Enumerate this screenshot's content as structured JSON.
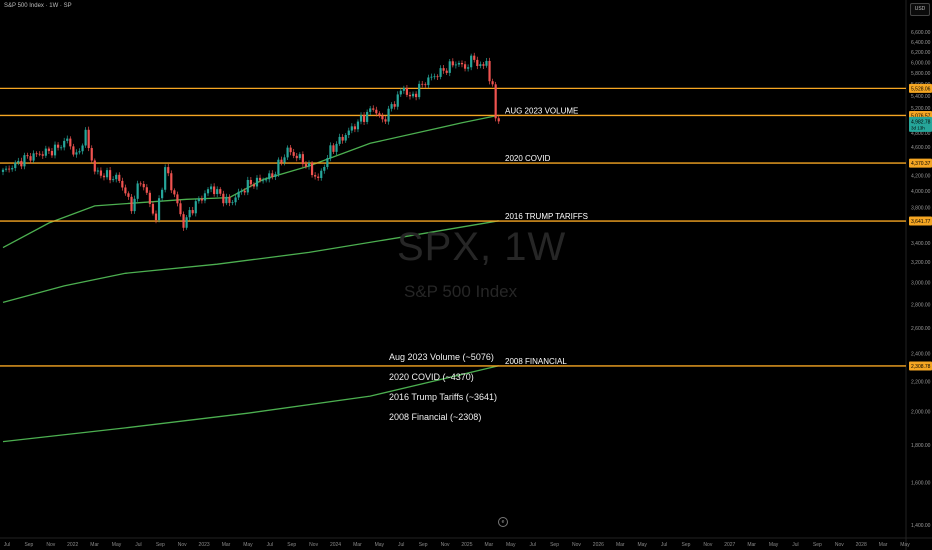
{
  "header": {
    "title": "S&P 500 Index · 1W · SP"
  },
  "toolbar": {
    "currency": "USD"
  },
  "watermark": {
    "symbol": "SPX, 1W",
    "name": "S&P 500 Index"
  },
  "legend_list": [
    "Aug 2023 Volume (~5076)",
    "2020 COVID (~4370)",
    "2016 Trump Tariffs (~3641)",
    "2008 Financial (~2308)"
  ],
  "bottom_icon": "circled-e-icon",
  "chart_data": {
    "type": "candlestick",
    "symbol": "SPX",
    "interval": "1W",
    "price_axis": {
      "ticks": [
        {
          "value": 6600,
          "label": "6,600.00"
        },
        {
          "value": 6400,
          "label": "6,400.00"
        },
        {
          "value": 6200,
          "label": "6,200.00"
        },
        {
          "value": 6000,
          "label": "6,000.00"
        },
        {
          "value": 5800,
          "label": "5,800.00"
        },
        {
          "value": 5600,
          "label": "5,600.00"
        },
        {
          "value": 5400,
          "label": "5,400.00"
        },
        {
          "value": 5200,
          "label": "5,200.00"
        },
        {
          "value": 4800,
          "label": "4,800.00"
        },
        {
          "value": 4600,
          "label": "4,600.00"
        },
        {
          "value": 4200,
          "label": "4,200.00"
        },
        {
          "value": 4000,
          "label": "4,000.00"
        },
        {
          "value": 3800,
          "label": "3,800.00"
        },
        {
          "value": 3400,
          "label": "3,400.00"
        },
        {
          "value": 3200,
          "label": "3,200.00"
        },
        {
          "value": 3000,
          "label": "3,000.00"
        },
        {
          "value": 2800,
          "label": "2,800.00"
        },
        {
          "value": 2600,
          "label": "2,600.00"
        },
        {
          "value": 2400,
          "label": "2,400.00"
        },
        {
          "value": 2200,
          "label": "2,200.00"
        },
        {
          "value": 2000,
          "label": "2,000.00"
        },
        {
          "value": 1800,
          "label": "1,800.00"
        },
        {
          "value": 1600,
          "label": "1,600.00"
        },
        {
          "value": 1400,
          "label": "1,400.00"
        }
      ],
      "scale": "log"
    },
    "time_axis": {
      "labels": [
        "Jul",
        "Sep",
        "Nov",
        "2022",
        "Mar",
        "May",
        "Jul",
        "Sep",
        "Nov",
        "2023",
        "Mar",
        "May",
        "Jul",
        "Sep",
        "Nov",
        "2024",
        "Mar",
        "May",
        "Jul",
        "Sep",
        "Nov",
        "2025",
        "Mar",
        "May",
        "Jul",
        "Sep",
        "Nov",
        "2026",
        "Mar",
        "May",
        "Jul",
        "Sep",
        "Nov",
        "2027",
        "Mar",
        "May",
        "Jul",
        "Sep",
        "Nov",
        "2028",
        "Mar",
        "May"
      ]
    },
    "price_badges": [
      {
        "value": 5528.06,
        "label": "5,528.06",
        "color": "#f5a623"
      },
      {
        "value": 5076.57,
        "label": "5,076.57",
        "color": "#f5a623"
      },
      {
        "value": 4982.78,
        "label": "4,982.78",
        "sub": "3d 13h",
        "color": "#26a69a"
      },
      {
        "value": 4370.37,
        "label": "4,370.37",
        "color": "#f5a623"
      },
      {
        "value": 3641.77,
        "label": "3,641.77",
        "color": "#f5a623"
      },
      {
        "value": 2308.78,
        "label": "2,308.78",
        "color": "#f5a623"
      }
    ],
    "horizontal_levels": [
      {
        "value": 5528.06,
        "label": ""
      },
      {
        "value": 5076.57,
        "label": "AUG 2023 VOLUME"
      },
      {
        "value": 4370.37,
        "label": "2020 COVID"
      },
      {
        "value": 3641.77,
        "label": "2016 TRUMP TARIFFS"
      },
      {
        "value": 2308.78,
        "label": "2008 FINANCIAL"
      }
    ],
    "key_prices": [
      {
        "t": 0,
        "p": 4250
      },
      {
        "t": 8,
        "p": 4450
      },
      {
        "t": 17,
        "p": 4560
      },
      {
        "t": 21,
        "p": 4700
      },
      {
        "t": 24,
        "p": 4450
      },
      {
        "t": 27,
        "p": 4780
      },
      {
        "t": 30,
        "p": 4250
      },
      {
        "t": 38,
        "p": 4150
      },
      {
        "t": 42,
        "p": 3800
      },
      {
        "t": 45,
        "p": 4150
      },
      {
        "t": 50,
        "p": 3650
      },
      {
        "t": 53,
        "p": 4300
      },
      {
        "t": 59,
        "p": 3600
      },
      {
        "t": 62,
        "p": 3800
      },
      {
        "t": 68,
        "p": 4050
      },
      {
        "t": 74,
        "p": 3850
      },
      {
        "t": 80,
        "p": 4080
      },
      {
        "t": 88,
        "p": 4200
      },
      {
        "t": 93,
        "p": 4550
      },
      {
        "t": 98,
        "p": 4400
      },
      {
        "t": 103,
        "p": 4150
      },
      {
        "t": 107,
        "p": 4550
      },
      {
        "t": 112,
        "p": 4780
      },
      {
        "t": 121,
        "p": 5200
      },
      {
        "t": 124,
        "p": 4980
      },
      {
        "t": 128,
        "p": 5300
      },
      {
        "t": 131,
        "p": 5550
      },
      {
        "t": 133,
        "p": 5350
      },
      {
        "t": 138,
        "p": 5650
      },
      {
        "t": 144,
        "p": 5850
      },
      {
        "t": 148,
        "p": 6000
      },
      {
        "t": 151,
        "p": 5900
      },
      {
        "t": 154,
        "p": 6090
      },
      {
        "t": 156,
        "p": 5880
      },
      {
        "t": 158,
        "p": 6050
      },
      {
        "t": 159,
        "p": 5650
      },
      {
        "t": 160,
        "p": 5550
      },
      {
        "t": 161,
        "p": 5070
      },
      {
        "t": 162,
        "p": 4982.78
      }
    ],
    "moving_averages": [
      {
        "name": "",
        "color": "#4caf50",
        "points": [
          {
            "t": 0,
            "p": 3350
          },
          {
            "t": 15,
            "p": 3620
          },
          {
            "t": 30,
            "p": 3820
          },
          {
            "t": 60,
            "p": 3900
          },
          {
            "t": 74,
            "p": 3920
          },
          {
            "t": 85,
            "p": 4150
          },
          {
            "t": 100,
            "p": 4330
          },
          {
            "t": 120,
            "p": 4650
          },
          {
            "t": 150,
            "p": 4960
          },
          {
            "t": 162,
            "p": 5078
          }
        ]
      },
      {
        "name": "",
        "color": "#4caf50",
        "points": [
          {
            "t": 0,
            "p": 2820
          },
          {
            "t": 20,
            "p": 2970
          },
          {
            "t": 40,
            "p": 3090
          },
          {
            "t": 70,
            "p": 3180
          },
          {
            "t": 100,
            "p": 3300
          },
          {
            "t": 130,
            "p": 3460
          },
          {
            "t": 162,
            "p": 3645
          }
        ]
      },
      {
        "name": "",
        "color": "#4caf50",
        "points": [
          {
            "t": 0,
            "p": 1820
          },
          {
            "t": 40,
            "p": 1900
          },
          {
            "t": 80,
            "p": 1990
          },
          {
            "t": 120,
            "p": 2100
          },
          {
            "t": 162,
            "p": 2310
          }
        ]
      }
    ]
  }
}
